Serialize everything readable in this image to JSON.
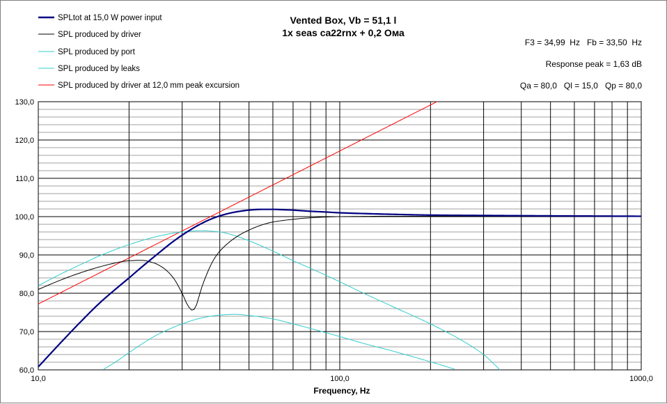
{
  "chart_data": {
    "type": "line",
    "title": "Vented Box, Vb = 51,1 l",
    "subtitle": "1x seas ca22rnx + 0,2 Ома",
    "xlabel": "Frequency, Hz",
    "ylabel": "",
    "xscale": "log",
    "xlim": [
      10,
      1000
    ],
    "ylim": [
      60,
      130
    ],
    "grid": true,
    "legend_position": "top-left",
    "x_tick_labels": [
      {
        "value": 10,
        "label": "10,0"
      },
      {
        "value": 100,
        "label": "100,0"
      },
      {
        "value": 1000,
        "label": "1000,0"
      }
    ],
    "y_tick_labels": [
      {
        "value": 60,
        "label": "60,0"
      },
      {
        "value": 70,
        "label": "70,0"
      },
      {
        "value": 80,
        "label": "80,0"
      },
      {
        "value": 90,
        "label": "90,0"
      },
      {
        "value": 100,
        "label": "100,0"
      },
      {
        "value": 110,
        "label": "110,0"
      },
      {
        "value": 120,
        "label": "120,0"
      },
      {
        "value": 130,
        "label": "130,0"
      }
    ],
    "annotations": [
      "F3 = 34,99  Hz   Fb = 33,50  Hz",
      "Response peak = 1,63 dB",
      "Qa = 80,0   Ql = 15,0   Qp = 80,0"
    ],
    "series": [
      {
        "name": "SPLtot at 15,0 W power input",
        "color": "#000080",
        "width": 2.2,
        "x": [
          10,
          12,
          14,
          16,
          18,
          20,
          22,
          25,
          28,
          31,
          34,
          37,
          40,
          45,
          50,
          55,
          60,
          65,
          70,
          80,
          90,
          100,
          120,
          150,
          200,
          300,
          500,
          1000
        ],
        "y": [
          60.8,
          67.5,
          73.0,
          77.5,
          81.0,
          84.0,
          86.8,
          90.4,
          93.5,
          95.9,
          97.8,
          99.2,
          100.2,
          101.2,
          101.7,
          101.9,
          101.9,
          101.8,
          101.7,
          101.4,
          101.2,
          101.0,
          100.8,
          100.6,
          100.4,
          100.3,
          100.2,
          100.1
        ]
      },
      {
        "name": "SPL produced by driver",
        "color": "#000000",
        "width": 1,
        "x": [
          10,
          12,
          14,
          16,
          18,
          20,
          22,
          24,
          26,
          28,
          30,
          31.5,
          32.5,
          33.5,
          34.5,
          36,
          38,
          40,
          45,
          50,
          55,
          60,
          70,
          80,
          100,
          150,
          200,
          500,
          1000
        ],
        "y": [
          81.0,
          83.6,
          85.5,
          86.9,
          87.9,
          88.5,
          88.6,
          88.0,
          86.6,
          84.1,
          80.0,
          76.5,
          75.5,
          77.0,
          80.5,
          84.5,
          88.5,
          91.0,
          94.5,
          96.5,
          97.8,
          98.6,
          99.3,
          99.7,
          100.0,
          100.1,
          100.1,
          100.1,
          100.1
        ]
      },
      {
        "name": "SPL produced by port",
        "color": "#33cccc",
        "width": 1,
        "x": [
          10,
          12,
          14,
          16,
          18,
          20,
          25,
          30,
          35,
          40,
          45,
          50,
          60,
          70,
          80,
          100,
          120,
          150,
          200,
          250,
          300,
          340
        ],
        "y": [
          82.0,
          85.2,
          87.7,
          89.8,
          91.4,
          92.7,
          94.9,
          96.0,
          96.3,
          96.0,
          95.0,
          93.7,
          91.0,
          88.5,
          86.5,
          83.0,
          80.0,
          76.5,
          72.0,
          68.0,
          64.0,
          60.0
        ]
      },
      {
        "name": "SPL produced by leaks",
        "color": "#33cccc",
        "width": 1,
        "x": [
          16.5,
          18,
          20,
          22,
          25,
          30,
          35,
          40,
          45,
          50,
          60,
          70,
          80,
          100,
          120,
          150,
          200,
          240
        ],
        "y": [
          60.2,
          62.0,
          64.5,
          66.7,
          69.3,
          72.0,
          73.6,
          74.3,
          74.5,
          74.2,
          73.3,
          72.0,
          70.8,
          68.7,
          66.9,
          64.9,
          62.1,
          60.2
        ]
      },
      {
        "name": "SPL produced by driver at 12,0 mm peak excursion",
        "color": "#ff0000",
        "width": 1,
        "x": [
          10,
          210
        ],
        "y": [
          77.2,
          130.0
        ]
      }
    ]
  }
}
